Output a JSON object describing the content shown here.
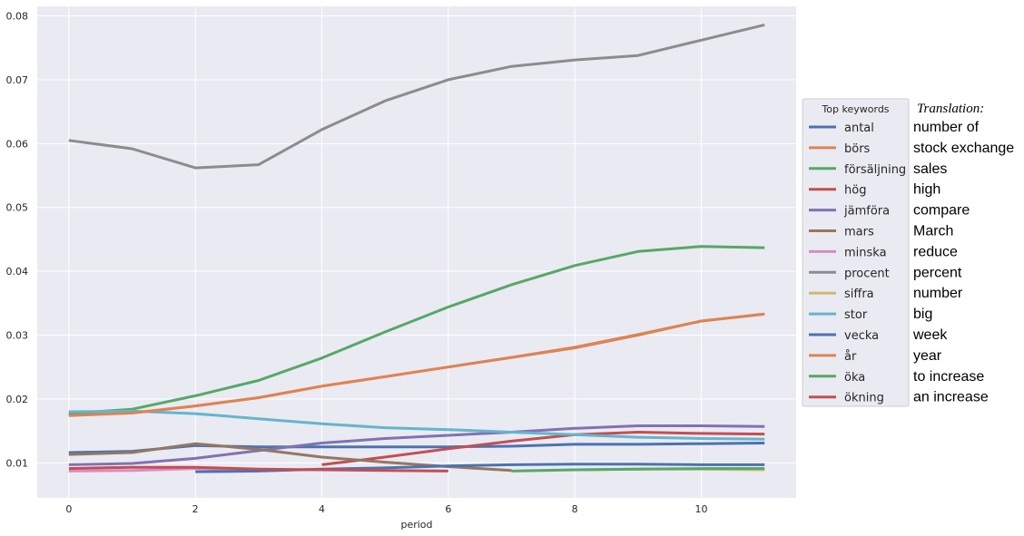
{
  "chart_data": {
    "type": "line",
    "xlabel": "period",
    "ylabel": "",
    "xlim": [
      -0.5,
      11.5
    ],
    "ylim": [
      0.0045,
      0.0815
    ],
    "x_ticks": [
      0,
      2,
      4,
      6,
      8,
      10
    ],
    "y_ticks": [
      0.01,
      0.02,
      0.03,
      0.04,
      0.05,
      0.06,
      0.07,
      0.08
    ],
    "grid": true,
    "legend": {
      "title": "Top keywords",
      "placement": "right"
    },
    "series": [
      {
        "name": "antal",
        "color": "#4c72b0",
        "x": [
          0,
          1,
          2,
          3,
          4,
          5,
          6,
          7,
          8,
          9,
          10,
          11
        ],
        "values": [
          0.0116,
          0.0118,
          0.0127,
          0.0125,
          0.0125,
          0.0125,
          0.0125,
          0.0126,
          0.0129,
          0.0129,
          0.013,
          0.0131
        ]
      },
      {
        "name": "börs",
        "color": "#dd8452",
        "x": [
          0,
          1,
          2,
          3,
          4,
          5,
          6,
          7,
          8,
          9,
          10,
          11
        ],
        "values": [
          0.0175,
          0.0178,
          0.0189,
          0.0202,
          0.022,
          0.0235,
          0.025,
          0.0265,
          0.028,
          0.03,
          0.0322,
          0.0333
        ]
      },
      {
        "name": "försäljning",
        "color": "#55a868",
        "x": [
          0,
          1,
          2,
          3,
          4,
          5,
          6,
          7,
          8,
          9,
          10,
          11
        ],
        "values": [
          0.0177,
          0.0184,
          0.0205,
          0.0229,
          0.0264,
          0.0305,
          0.0344,
          0.0379,
          0.0409,
          0.0431,
          0.0439,
          0.0437
        ]
      },
      {
        "name": "hög",
        "color": "#c44e52",
        "x": [
          4,
          5,
          6,
          7,
          8,
          9,
          10,
          11
        ],
        "values": [
          0.0097,
          0.0109,
          0.0122,
          0.0134,
          0.0144,
          0.0148,
          0.0146,
          0.0145
        ]
      },
      {
        "name": "jämföra",
        "color": "#8172b3",
        "x": [
          0,
          1,
          2,
          3,
          4,
          5,
          6,
          7,
          8,
          9,
          10,
          11
        ],
        "values": [
          0.0097,
          0.0099,
          0.0107,
          0.0119,
          0.0131,
          0.0138,
          0.0143,
          0.0148,
          0.0154,
          0.0158,
          0.0158,
          0.0157
        ]
      },
      {
        "name": "mars",
        "color": "#937860",
        "x": [
          0,
          1,
          2,
          3,
          4,
          5,
          6,
          7
        ],
        "values": [
          0.0113,
          0.0116,
          0.013,
          0.0121,
          0.0109,
          0.0101,
          0.0094,
          0.0088
        ]
      },
      {
        "name": "minska",
        "color": "#da8bc3",
        "x": [
          0,
          1,
          2,
          3
        ],
        "values": [
          0.0087,
          0.0088,
          0.0091,
          0.0089
        ]
      },
      {
        "name": "procent",
        "color": "#8c8c8c",
        "x": [
          0,
          1,
          2,
          3,
          4,
          5,
          6,
          7,
          8,
          9,
          10,
          11
        ],
        "values": [
          0.0605,
          0.0592,
          0.0562,
          0.0567,
          0.0622,
          0.0667,
          0.07,
          0.0721,
          0.0731,
          0.0738,
          0.0762,
          0.0786
        ]
      },
      {
        "name": "siffra",
        "color": "#ccb974",
        "x": [
          8,
          9,
          10,
          11
        ],
        "values": [
          0.0089,
          0.009,
          0.009,
          0.0089
        ]
      },
      {
        "name": "stor",
        "color": "#64b5cd",
        "x": [
          0,
          1,
          2,
          3,
          4,
          5,
          6,
          7,
          8,
          9,
          10,
          11
        ],
        "values": [
          0.018,
          0.0181,
          0.0177,
          0.0169,
          0.0161,
          0.0155,
          0.0152,
          0.0148,
          0.0144,
          0.014,
          0.0138,
          0.0137
        ]
      },
      {
        "name": "vecka",
        "color": "#4c72b0",
        "x": [
          2,
          3,
          4,
          5,
          6,
          7,
          8,
          9,
          10,
          11
        ],
        "values": [
          0.0086,
          0.0087,
          0.009,
          0.0092,
          0.0095,
          0.0097,
          0.0098,
          0.0098,
          0.0097,
          0.0097
        ]
      },
      {
        "name": "år",
        "color": "#dd8452",
        "x": [
          0,
          1,
          2,
          3,
          4,
          5,
          6,
          7,
          8,
          9,
          10,
          11
        ],
        "values": [
          0.0174,
          0.0178,
          0.0189,
          0.0202,
          0.022,
          0.0235,
          0.025,
          0.0265,
          0.0281,
          0.0301,
          0.0322,
          0.0333
        ]
      },
      {
        "name": "öka",
        "color": "#55a868",
        "x": [
          7,
          8,
          9,
          10,
          11
        ],
        "values": [
          0.0087,
          0.0089,
          0.009,
          0.0091,
          0.0091
        ]
      },
      {
        "name": "ökning",
        "color": "#c44e52",
        "x": [
          0,
          1,
          2,
          3,
          4,
          5,
          6
        ],
        "values": [
          0.0091,
          0.0093,
          0.0093,
          0.009,
          0.0089,
          0.0088,
          0.0087
        ]
      }
    ]
  },
  "translation": {
    "title": "Translation:",
    "items": [
      "number of",
      "stock exchange",
      "sales",
      "high",
      "compare",
      "March",
      "reduce",
      "percent",
      "number",
      "big",
      "week",
      "year",
      "to increase",
      "an increase"
    ]
  }
}
